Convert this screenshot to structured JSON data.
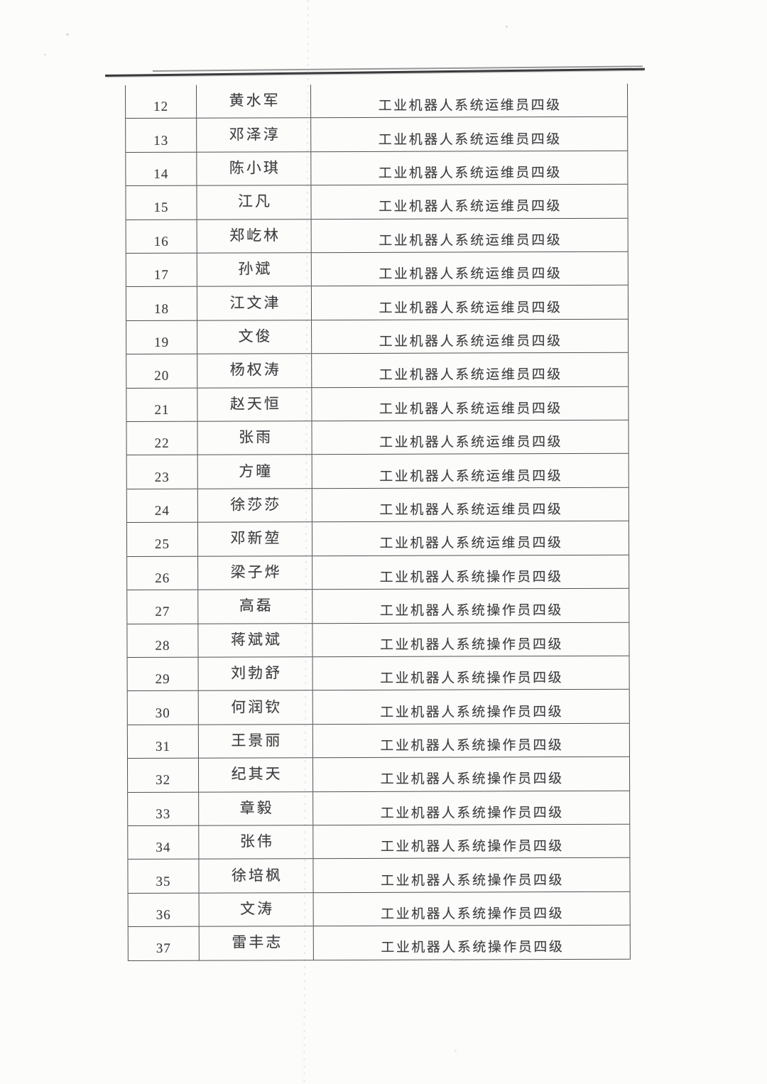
{
  "colors": {
    "page_background": "#fcfcfb",
    "text": "#3f3f42",
    "table_border": "#515154",
    "header_rule": "#3a3a3c"
  },
  "table": {
    "rows": [
      {
        "no": "12",
        "name": "黄水军",
        "cert": "工业机器人系统运维员四级"
      },
      {
        "no": "13",
        "name": "邓泽淳",
        "cert": "工业机器人系统运维员四级"
      },
      {
        "no": "14",
        "name": "陈小琪",
        "cert": "工业机器人系统运维员四级"
      },
      {
        "no": "15",
        "name": "江凡",
        "cert": "工业机器人系统运维员四级"
      },
      {
        "no": "16",
        "name": "郑屹林",
        "cert": "工业机器人系统运维员四级"
      },
      {
        "no": "17",
        "name": "孙斌",
        "cert": "工业机器人系统运维员四级"
      },
      {
        "no": "18",
        "name": "江文津",
        "cert": "工业机器人系统运维员四级"
      },
      {
        "no": "19",
        "name": "文俊",
        "cert": "工业机器人系统运维员四级"
      },
      {
        "no": "20",
        "name": "杨权涛",
        "cert": "工业机器人系统运维员四级"
      },
      {
        "no": "21",
        "name": "赵天恒",
        "cert": "工业机器人系统运维员四级"
      },
      {
        "no": "22",
        "name": "张雨",
        "cert": "工业机器人系统运维员四级"
      },
      {
        "no": "23",
        "name": "方曈",
        "cert": "工业机器人系统运维员四级"
      },
      {
        "no": "24",
        "name": "徐莎莎",
        "cert": "工业机器人系统运维员四级"
      },
      {
        "no": "25",
        "name": "邓新堃",
        "cert": "工业机器人系统运维员四级"
      },
      {
        "no": "26",
        "name": "梁子烨",
        "cert": "工业机器人系统操作员四级"
      },
      {
        "no": "27",
        "name": "高磊",
        "cert": "工业机器人系统操作员四级"
      },
      {
        "no": "28",
        "name": "蒋斌斌",
        "cert": "工业机器人系统操作员四级"
      },
      {
        "no": "29",
        "name": "刘勃舒",
        "cert": "工业机器人系统操作员四级"
      },
      {
        "no": "30",
        "name": "何润钦",
        "cert": "工业机器人系统操作员四级"
      },
      {
        "no": "31",
        "name": "王景丽",
        "cert": "工业机器人系统操作员四级"
      },
      {
        "no": "32",
        "name": "纪其天",
        "cert": "工业机器人系统操作员四级"
      },
      {
        "no": "33",
        "name": "章毅",
        "cert": "工业机器人系统操作员四级"
      },
      {
        "no": "34",
        "name": "张伟",
        "cert": "工业机器人系统操作员四级"
      },
      {
        "no": "35",
        "name": "徐培枫",
        "cert": "工业机器人系统操作员四级"
      },
      {
        "no": "36",
        "name": "文涛",
        "cert": "工业机器人系统操作员四级"
      },
      {
        "no": "37",
        "name": "雷丰志",
        "cert": "工业机器人系统操作员四级"
      }
    ]
  }
}
